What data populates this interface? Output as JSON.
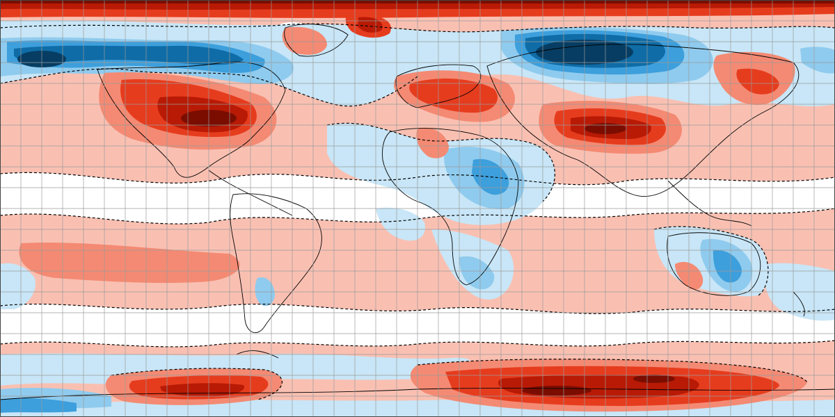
{
  "map": {
    "projection": "equirectangular",
    "grid_lines_lon": 40,
    "grid_lines_lat": 20,
    "colors": {
      "anomaly_deep_red": "#7a0d00",
      "anomaly_dark_red": "#b81a05",
      "anomaly_red": "#e63c1e",
      "anomaly_light_red": "#f48a73",
      "anomaly_pale_red": "#f9c0b2",
      "anomaly_neutral": "#ffffff",
      "anomaly_pale_blue": "#c8e6f7",
      "anomaly_light_blue": "#8fcbee",
      "anomaly_blue": "#3d9fdc",
      "anomaly_dark_blue": "#0f6ca6",
      "anomaly_deep_blue": "#073d63",
      "grid": "#9a9a9a",
      "contour": "#000000",
      "coastline": "#000000"
    }
  }
}
